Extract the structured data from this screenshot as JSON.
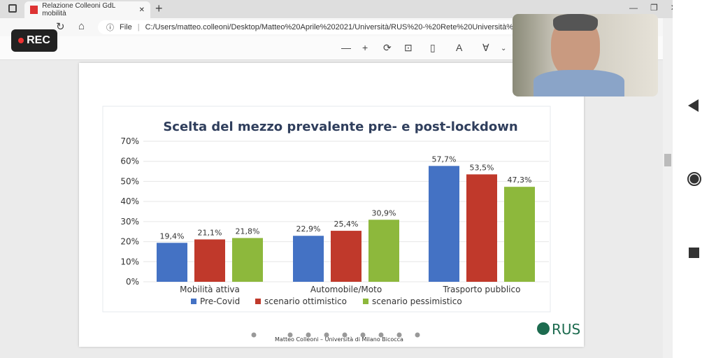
{
  "browser": {
    "tab_title": "Relazione Colleoni GdL mobilità",
    "url_prefix": "File",
    "url": "C:/Users/matteo.colleoni/Desktop/Matteo%20Aprile%202021/Università/RUS%20-%20Rete%20Università%20Sost"
  },
  "recorder": {
    "label": "REC"
  },
  "footer": {
    "text": "Matteo Colleoni – Università di Milano Bicocca",
    "logo": "RUS"
  },
  "colors": {
    "pre_covid": "#4472c4",
    "ottimistico": "#c0392b",
    "pessimistico": "#8db83c"
  },
  "chart_data": {
    "type": "bar",
    "title": "Scelta del mezzo prevalente pre- e post-lockdown",
    "categories": [
      "Mobilità attiva",
      "Automobile/Moto",
      "Trasporto pubblico"
    ],
    "yticks": [
      "0%",
      "10%",
      "20%",
      "30%",
      "40%",
      "50%",
      "60%",
      "70%"
    ],
    "ylim": [
      0,
      70
    ],
    "legend": "bottom",
    "series": [
      {
        "name": "Pre-Covid",
        "values": [
          19.4,
          22.9,
          57.7
        ],
        "labels": [
          "19,4%",
          "22,9%",
          "57,7%"
        ]
      },
      {
        "name": "scenario ottimistico",
        "values": [
          21.1,
          25.4,
          53.5
        ],
        "labels": [
          "21,1%",
          "25,4%",
          "53,5%"
        ]
      },
      {
        "name": "scenario pessimistico",
        "values": [
          21.8,
          30.9,
          47.3
        ],
        "labels": [
          "21,8%",
          "30,9%",
          "47,3%"
        ]
      }
    ]
  }
}
